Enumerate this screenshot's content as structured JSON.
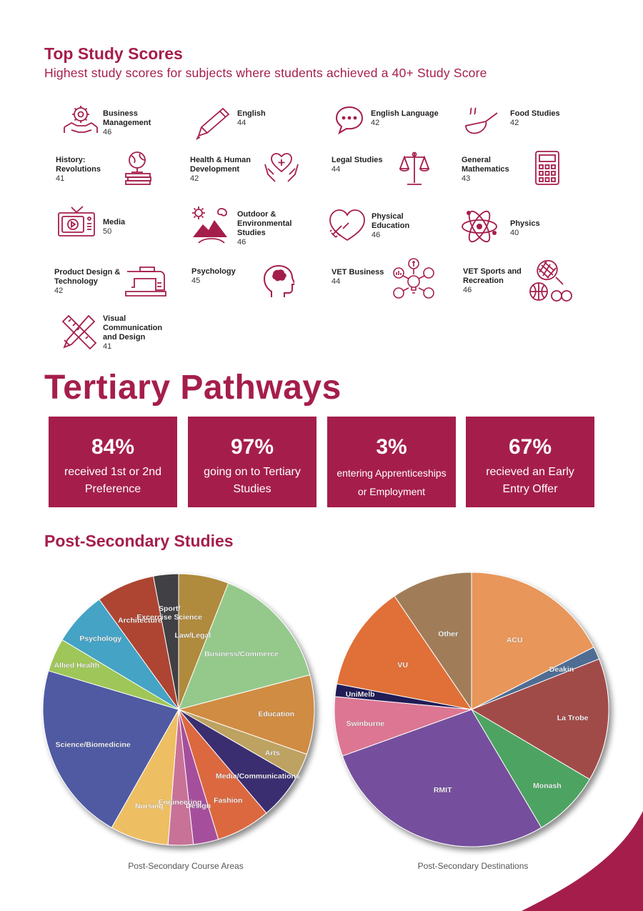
{
  "top_scores": {
    "title": "Top Study Scores",
    "subtitle": "Highest study scores for subjects where students achieved a 40+ Study Score",
    "subjects": [
      {
        "name": "Business Management",
        "score": "46",
        "icon": "business-management-icon"
      },
      {
        "name": "English",
        "score": "44",
        "icon": "pencil-icon"
      },
      {
        "name": "English Language",
        "score": "42",
        "icon": "speech-bubble-icon"
      },
      {
        "name": "Food Studies",
        "score": "42",
        "icon": "frying-pan-icon"
      },
      {
        "name": "History: Revolutions",
        "score": "41",
        "icon": "globe-books-icon"
      },
      {
        "name": "Health & Human Development",
        "score": "42",
        "icon": "heart-hands-icon"
      },
      {
        "name": "Legal Studies",
        "score": "44",
        "icon": "scales-icon"
      },
      {
        "name": "General Mathematics",
        "score": "43",
        "icon": "calculator-icon"
      },
      {
        "name": "Media",
        "score": "50",
        "icon": "television-icon"
      },
      {
        "name": "Outdoor & Environmental Studies",
        "score": "46",
        "icon": "mountain-sun-icon"
      },
      {
        "name": "Physical Education",
        "score": "46",
        "icon": "heart-dumbbell-icon"
      },
      {
        "name": "Physics",
        "score": "40",
        "icon": "atom-icon"
      },
      {
        "name": "Product Design & Technology",
        "score": "42",
        "icon": "sewing-machine-icon"
      },
      {
        "name": "Psychology",
        "score": "45",
        "icon": "head-brain-icon"
      },
      {
        "name": "VET Business",
        "score": "44",
        "icon": "business-network-icon"
      },
      {
        "name": "VET Sports and Recreation",
        "score": "46",
        "icon": "sports-balls-icon"
      },
      {
        "name": "Visual Communication and Design",
        "score": "41",
        "icon": "ruler-pencil-icon"
      }
    ]
  },
  "tertiary": {
    "title": "Tertiary Pathways",
    "stats": [
      {
        "value": "84%",
        "label": "received 1st or 2nd Preference"
      },
      {
        "value": "97%",
        "label": "going on to Tertiary Studies"
      },
      {
        "value": "3%",
        "label": "entering Apprenticeships or Employment"
      },
      {
        "value": "67%",
        "label": "recieved an Early Entry Offer"
      }
    ]
  },
  "post_secondary": {
    "title": "Post-Secondary Studies"
  },
  "accent_color": "#a51e4b",
  "chart_data": [
    {
      "type": "pie",
      "title": "Post-Secondary Course Areas",
      "categories": [
        "Law/Legal",
        "Business/Commerce",
        "Education",
        "Arts",
        "Media/Communications",
        "Fashion",
        "Design",
        "Engineering",
        "Nursing",
        "Science/Biomedicine",
        "Allied Health",
        "Psychology",
        "Architecture",
        "Sport/ Excercise Science"
      ],
      "values": [
        6.0,
        15.0,
        9.5,
        3.0,
        5.5,
        6.5,
        3.0,
        3.0,
        7.0,
        21.5,
        4.0,
        6.5,
        7.0,
        3.0
      ],
      "colors": [
        "#b08a3e",
        "#95c98b",
        "#d08c42",
        "#bda262",
        "#3b2e6f",
        "#dc6840",
        "#a54f9c",
        "#c87298",
        "#eebe63",
        "#4f5aa3",
        "#9fc658",
        "#44a3c5",
        "#ad4430",
        "#3f4044"
      ]
    },
    {
      "type": "pie",
      "title": "Post-Secondary Destinations",
      "categories": [
        "ACU",
        "Deakin",
        "La Trobe",
        "Monash",
        "RMIT",
        "Swinburne",
        "UniMelb",
        "VU",
        "Other"
      ],
      "values": [
        17.5,
        1.5,
        14.5,
        8.0,
        28.0,
        7.0,
        1.5,
        12.5,
        9.5
      ],
      "colors": [
        "#e8965a",
        "#506d93",
        "#a14b4a",
        "#4ea462",
        "#744f9d",
        "#dc7693",
        "#211e56",
        "#e06f38",
        "#a07d58"
      ]
    }
  ]
}
